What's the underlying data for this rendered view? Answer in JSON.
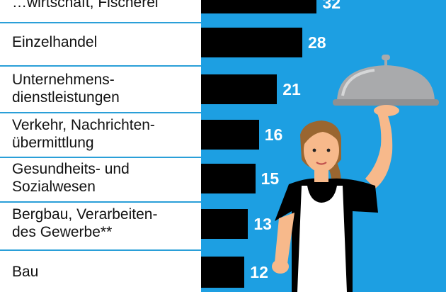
{
  "colors": {
    "panel": "#1d9fe2",
    "bar": "#000000",
    "separator": "#2a9fd8",
    "value_text": "#ffffff",
    "label_text": "#111111"
  },
  "chart_data": {
    "type": "bar",
    "orientation": "horizontal",
    "categories": [
      "…wirtschaft, Fischerei",
      "Einzelhandel",
      "Unternehmens-\ndienstleistungen",
      "Verkehr, Nachrichten-\nübermittlung",
      "Gesundheits- und\nSozialwesen",
      "Bergbau, Verarbeiten-\ndes Gewerbe**",
      "Bau"
    ],
    "values": [
      32,
      28,
      21,
      16,
      15,
      13,
      12
    ],
    "value_labels": [
      "32",
      "28",
      "21",
      "16",
      "15",
      "13",
      "12"
    ],
    "xlim": [
      0,
      36
    ],
    "grid": false,
    "legend": "none"
  },
  "illustration": {
    "name": "waitress-with-serving-cloche"
  }
}
